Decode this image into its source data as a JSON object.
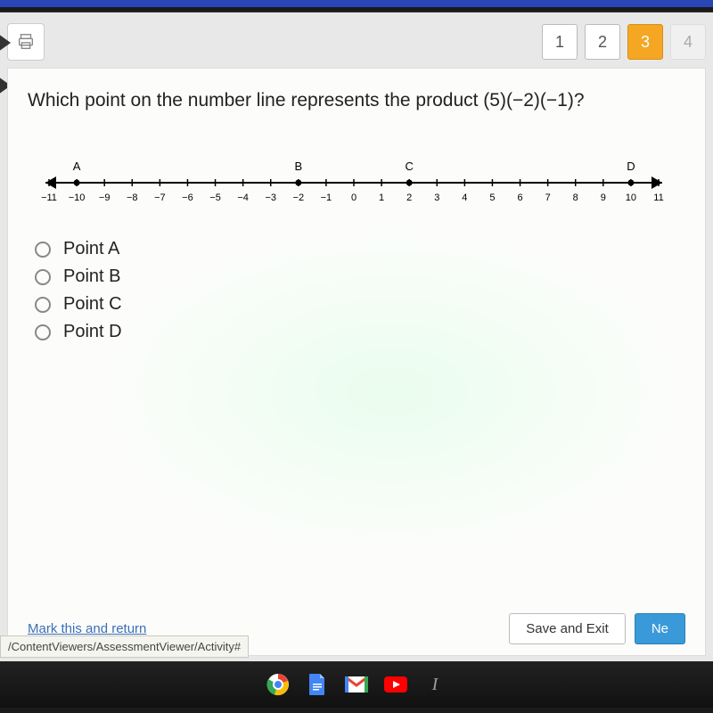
{
  "nav": {
    "steps": [
      {
        "label": "1",
        "state": "normal"
      },
      {
        "label": "2",
        "state": "normal"
      },
      {
        "label": "3",
        "state": "active"
      },
      {
        "label": "4",
        "state": "disabled"
      }
    ]
  },
  "question": {
    "text_prefix": "Which point on the number line represents the product ",
    "expression": "(5)(−2)(−1)",
    "text_suffix": "?"
  },
  "number_line": {
    "min": -11,
    "max": 11,
    "tick_step": 1,
    "ticks": [
      -11,
      -10,
      -9,
      -8,
      -7,
      -6,
      -5,
      -4,
      -3,
      -2,
      -1,
      0,
      1,
      2,
      3,
      4,
      5,
      6,
      7,
      8,
      9,
      10,
      11
    ],
    "points": [
      {
        "label": "A",
        "x": -10
      },
      {
        "label": "B",
        "x": -2
      },
      {
        "label": "C",
        "x": 2
      },
      {
        "label": "D",
        "x": 10
      }
    ],
    "axis_color": "#000000",
    "tick_label_fontsize": 11,
    "point_label_fontsize": 13,
    "tick_height": 8
  },
  "answers": [
    {
      "label": "Point A"
    },
    {
      "label": "Point B"
    },
    {
      "label": "Point C"
    },
    {
      "label": "Point D"
    }
  ],
  "footer": {
    "mark_return": "Mark this and return",
    "save_exit": "Save and Exit",
    "next": "Ne"
  },
  "url_chip": "/ContentViewers/AssessmentViewer/Activity#",
  "colors": {
    "step_active_bg": "#f5a623",
    "next_btn_bg": "#3a9ad9",
    "link": "#3b6fb8"
  }
}
